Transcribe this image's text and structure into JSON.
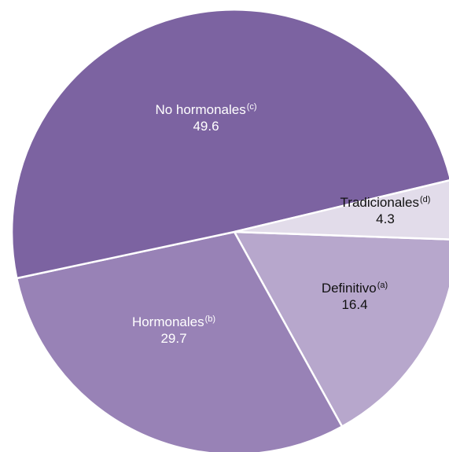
{
  "chart_data": {
    "type": "pie",
    "slices": [
      {
        "name": "Definitivo",
        "note": "(a)",
        "value": 16.4,
        "color": "#b7a7cc",
        "text_color": "#111111"
      },
      {
        "name": "Hormonales",
        "note": "(b)",
        "value": 29.7,
        "color": "#9882b6",
        "text_color": "#ffffff"
      },
      {
        "name": "No hormonales",
        "note": "(c)",
        "value": 49.6,
        "color": "#7c63a1",
        "text_color": "#ffffff"
      },
      {
        "name": "Tradicionales",
        "note": "(d)",
        "value": 4.3,
        "color": "#e2dcea",
        "text_color": "#111111"
      }
    ],
    "start_direction": "right, just below horizontal",
    "direction": "clockwise",
    "slice_border_color": "#ffffff"
  }
}
